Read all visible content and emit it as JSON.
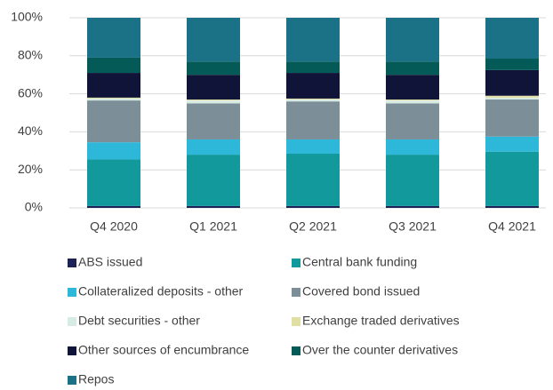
{
  "chart_data": {
    "type": "bar",
    "stacked": true,
    "categories": [
      "Q4 2020",
      "Q1 2021",
      "Q2 2021",
      "Q3 2021",
      "Q4 2021"
    ],
    "ylim": [
      0,
      100
    ],
    "yticks": [
      {
        "value": 0,
        "label": "0%"
      },
      {
        "value": 20,
        "label": "20%"
      },
      {
        "value": 40,
        "label": "40%"
      },
      {
        "value": 60,
        "label": "60%"
      },
      {
        "value": 80,
        "label": "80%"
      },
      {
        "value": 100,
        "label": "100%"
      }
    ],
    "grid": true,
    "series": [
      {
        "name": "ABS issued",
        "color": "#1c2255",
        "values": [
          1,
          1,
          1,
          1,
          1
        ]
      },
      {
        "name": "Central bank funding",
        "color": "#12999c",
        "values": [
          24.5,
          27,
          27.5,
          27,
          28.5
        ]
      },
      {
        "name": "Collateralized deposits - other",
        "color": "#2db7d8",
        "values": [
          9,
          8,
          7.5,
          8,
          8
        ]
      },
      {
        "name": "Covered bond issued",
        "color": "#7c8e97",
        "values": [
          22,
          19,
          20,
          19,
          19.5
        ]
      },
      {
        "name": "Debt securities - other",
        "color": "#d5ebe4",
        "values": [
          1,
          1.5,
          1,
          1.5,
          1
        ]
      },
      {
        "name": "Exchange traded derivatives",
        "color": "#e2dfa4",
        "values": [
          0.5,
          0.5,
          0.5,
          0.5,
          1
        ]
      },
      {
        "name": "Other sources of encumbrance",
        "color": "#0f1438",
        "values": [
          13,
          13,
          13.5,
          13,
          13.5
        ]
      },
      {
        "name": "Over the counter derivatives",
        "color": "#045a56",
        "values": [
          8,
          7,
          6,
          7,
          6
        ]
      },
      {
        "name": "Repos",
        "color": "#1b7186",
        "values": [
          21,
          23,
          23,
          23,
          21.5
        ]
      }
    ]
  }
}
